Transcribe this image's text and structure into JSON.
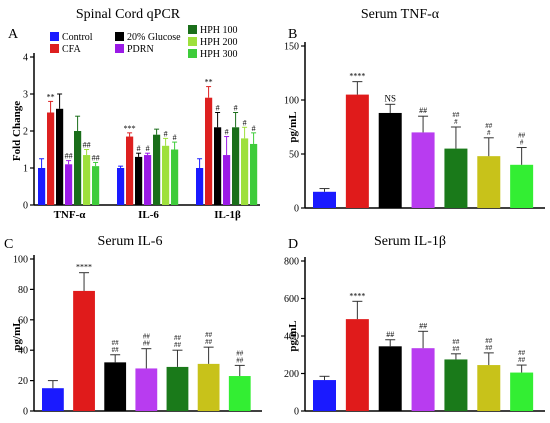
{
  "chart_data": [
    {
      "panel": "A",
      "type": "bar",
      "title": "Spinal Cord qPCR",
      "ylabel": "Fold Change",
      "ylim": [
        0,
        4
      ],
      "yticks": [
        0,
        1,
        2,
        3,
        4
      ],
      "categories": [
        "TNF-α",
        "IL-6",
        "IL-1β"
      ],
      "legend_position": "top-left",
      "series": [
        {
          "name": "Control",
          "color": "#1a1aff",
          "values": [
            1.0,
            1.0,
            1.0
          ],
          "errors": [
            0.25,
            0.05,
            0.25
          ],
          "sig": [
            "",
            "",
            ""
          ]
        },
        {
          "name": "CFA",
          "color": "#dd2020",
          "values": [
            2.5,
            1.85,
            2.9
          ],
          "errors": [
            0.3,
            0.1,
            0.3
          ],
          "sig": [
            "**",
            "***",
            "**"
          ]
        },
        {
          "name": "20% Glucose",
          "color": "#000000",
          "values": [
            2.6,
            1.3,
            2.1
          ],
          "errors": [
            0.4,
            0.1,
            0.4
          ],
          "sig": [
            "",
            "#",
            "#"
          ]
        },
        {
          "name": "PDRN",
          "color": "#9a1ae6",
          "values": [
            1.1,
            1.35,
            1.35
          ],
          "errors": [
            0.1,
            0.05,
            0.5
          ],
          "sig": [
            "##",
            "#",
            "#"
          ]
        },
        {
          "name": "HPH 100",
          "color": "#1a6e1a",
          "values": [
            2.0,
            1.9,
            2.1
          ],
          "errors": [
            0.4,
            0.15,
            0.4
          ],
          "sig": [
            "",
            "",
            "#"
          ]
        },
        {
          "name": "HPH 200",
          "color": "#9ee03c",
          "values": [
            1.35,
            1.6,
            1.8
          ],
          "errors": [
            0.15,
            0.2,
            0.3
          ],
          "sig": [
            "##",
            "#",
            "#"
          ]
        },
        {
          "name": "HPH 300",
          "color": "#3ecc3a",
          "values": [
            1.05,
            1.5,
            1.65
          ],
          "errors": [
            0.1,
            0.2,
            0.3
          ],
          "sig": [
            "##",
            "#",
            "#"
          ]
        }
      ]
    },
    {
      "panel": "B",
      "type": "bar",
      "title": "Serum TNF-α",
      "ylabel": "pg/mL",
      "ylim": [
        0,
        150
      ],
      "yticks": [
        0,
        50,
        100,
        150
      ],
      "colors": [
        "#1a1aff",
        "#e01b1b",
        "#000000",
        "#b83cf0",
        "#1a7a1a",
        "#c8c21a",
        "#33ee33"
      ],
      "values": [
        15,
        105,
        88,
        70,
        55,
        48,
        40
      ],
      "errors": [
        3,
        12,
        8,
        15,
        20,
        17,
        16
      ],
      "sig": [
        "",
        "****",
        "NS",
        "##",
        "###",
        "###",
        "###"
      ]
    },
    {
      "panel": "C",
      "type": "bar",
      "title": "Serum IL-6",
      "ylabel": "pg/mL",
      "ylim": [
        0,
        100
      ],
      "yticks": [
        0,
        20,
        40,
        60,
        80,
        100
      ],
      "colors": [
        "#1a1aff",
        "#e01b1b",
        "#000000",
        "#b83cf0",
        "#1a7a1a",
        "#c8c21a",
        "#33ee33"
      ],
      "values": [
        15,
        79,
        32,
        28,
        29,
        31,
        23
      ],
      "errors": [
        5,
        12,
        5,
        13,
        11,
        11,
        7
      ],
      "sig": [
        "",
        "****",
        "####",
        "####",
        "####",
        "####",
        "####"
      ]
    },
    {
      "panel": "D",
      "type": "bar",
      "title": "Serum IL-1β",
      "ylabel": "pg/mL",
      "ylim": [
        0,
        800
      ],
      "yticks": [
        0,
        200,
        400,
        600,
        800
      ],
      "colors": [
        "#1a1aff",
        "#e01b1b",
        "#000000",
        "#b83cf0",
        "#1a7a1a",
        "#c8c21a",
        "#33ee33"
      ],
      "values": [
        165,
        490,
        345,
        335,
        275,
        245,
        205
      ],
      "errors": [
        20,
        95,
        35,
        90,
        30,
        65,
        40
      ],
      "sig": [
        "",
        "****",
        "##",
        "##",
        "####",
        "####",
        "####"
      ]
    }
  ]
}
